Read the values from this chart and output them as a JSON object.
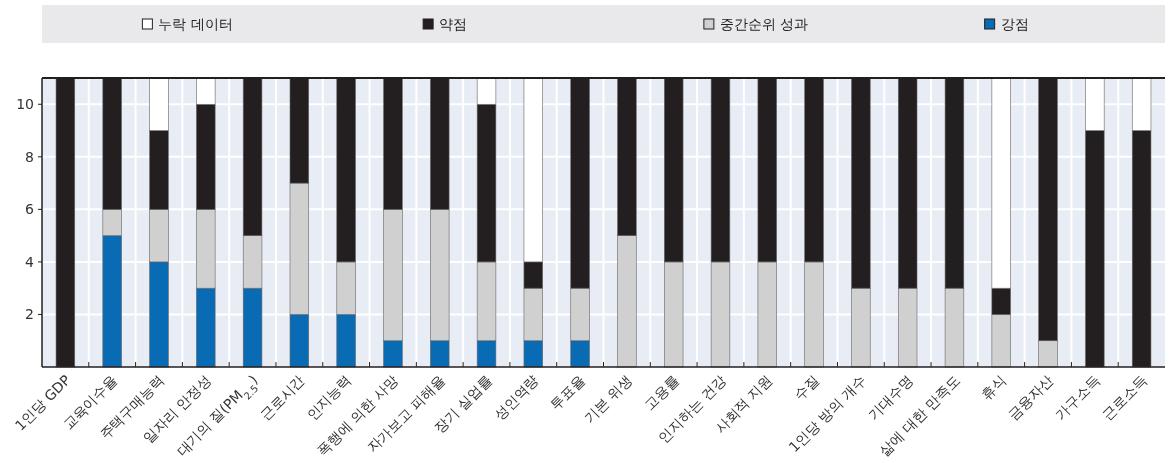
{
  "chart_data": {
    "type": "bar",
    "stacked": true,
    "legend": "top",
    "grid": true,
    "categories": [
      "1인당 GDP",
      "교육이수율",
      "주택구매능력",
      "일자리 안정성",
      "대기의 질(PM$_{2.5}$)",
      "근로시간",
      "인지능력",
      "폭행에 의한 사망",
      "자가보고 피해율",
      "장기 실업률",
      "성인역량",
      "투표율",
      "기본 위생",
      "고용률",
      "인지하는 건강",
      "사회적 지원",
      "수질",
      "1인당 방의 개수",
      "기대수명",
      "삶에 대한 만족도",
      "휴식",
      "금융자산",
      "가구소득",
      "근로소득"
    ],
    "ylim": [
      0,
      11
    ],
    "yticks": [
      2,
      4,
      6,
      8,
      10
    ],
    "series": [
      {
        "name": "강점",
        "color": "#0a6bb5",
        "values": [
          0,
          5,
          4,
          3,
          3,
          2,
          2,
          1,
          1,
          1,
          1,
          1,
          0,
          0,
          0,
          0,
          0,
          0,
          0,
          0,
          0,
          0,
          0,
          0
        ]
      },
      {
        "name": "중간순위 성과",
        "color": "#d0d0d0",
        "values": [
          0,
          1,
          2,
          3,
          2,
          5,
          2,
          5,
          5,
          3,
          2,
          2,
          5,
          4,
          4,
          4,
          4,
          3,
          3,
          3,
          2,
          1,
          0,
          0
        ]
      },
      {
        "name": "약점",
        "color": "#231f20",
        "values": [
          11,
          5,
          3,
          4,
          6,
          4,
          7,
          5,
          5,
          6,
          1,
          8,
          6,
          7,
          7,
          7,
          7,
          8,
          8,
          8,
          1,
          10,
          9,
          9
        ]
      },
      {
        "name": "누락 데이터",
        "color": "#ffffff",
        "values": [
          0,
          0,
          2,
          1,
          0,
          0,
          0,
          0,
          0,
          1,
          7,
          0,
          0,
          0,
          0,
          0,
          0,
          0,
          0,
          0,
          8,
          0,
          2,
          2
        ]
      }
    ]
  }
}
